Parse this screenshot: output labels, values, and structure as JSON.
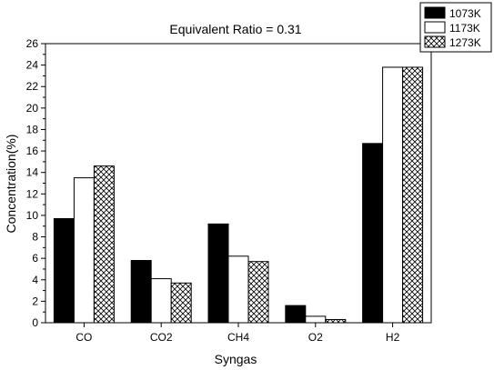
{
  "chart_data": {
    "type": "bar",
    "title": "Equivalent Ratio = 0.31",
    "xlabel": "Syngas",
    "ylabel": "Concentration(%)",
    "categories": [
      "CO",
      "CO2",
      "CH4",
      "O2",
      "H2"
    ],
    "ylim": [
      0,
      26
    ],
    "yticks": [
      0,
      2,
      4,
      6,
      8,
      10,
      12,
      14,
      16,
      18,
      20,
      22,
      24,
      26
    ],
    "legend_position": "top-right",
    "grid": false,
    "series": [
      {
        "name": "1073K",
        "values": [
          9.7,
          5.8,
          9.2,
          1.6,
          16.7
        ],
        "fill": "#000000",
        "pattern": "solid"
      },
      {
        "name": "1173K",
        "values": [
          13.5,
          4.1,
          6.2,
          0.6,
          23.8
        ],
        "fill": "#ffffff",
        "pattern": "empty"
      },
      {
        "name": "1273K",
        "values": [
          14.6,
          3.7,
          5.7,
          0.3,
          23.8
        ],
        "fill": "#ffffff",
        "pattern": "crosshatch"
      }
    ]
  }
}
